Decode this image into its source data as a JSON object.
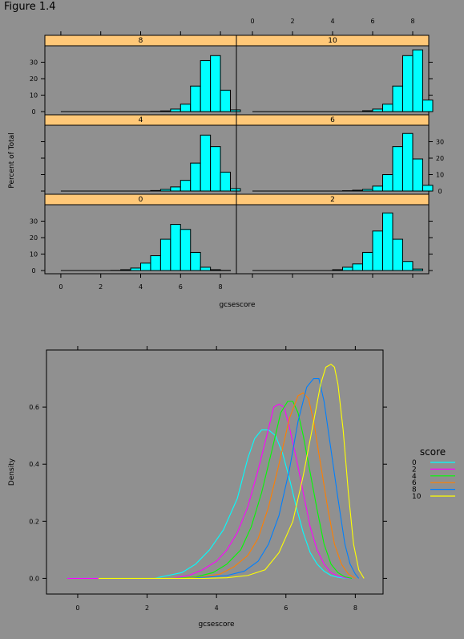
{
  "figure_title": "Figure 1.4",
  "chart_data": [
    {
      "type": "bar",
      "subtype": "trellis-histogram",
      "title": "",
      "xlabel": "gcsescore",
      "ylabel": "Percent of Total",
      "xlim": [
        -0.8,
        8.8
      ],
      "ylim": [
        0,
        40
      ],
      "x_ticks": [
        "0",
        "2",
        "4",
        "6",
        "8"
      ],
      "y_ticks": [
        "0",
        "10",
        "20",
        "30"
      ],
      "bar_color": "#00ffff",
      "strip_color": "#ffc878",
      "bin_edges": [
        0,
        0.5,
        1,
        1.5,
        2,
        2.5,
        3,
        3.5,
        4,
        4.5,
        5,
        5.5,
        6,
        6.5,
        7,
        7.5,
        8,
        8.5
      ],
      "panels": [
        {
          "label": "8",
          "values": [
            0,
            0,
            0,
            0,
            0,
            0,
            0,
            0,
            0,
            0.1,
            0.4,
            1.5,
            4.5,
            15.5,
            31,
            34,
            13,
            1
          ]
        },
        {
          "label": "10",
          "values": [
            0,
            0,
            0,
            0,
            0,
            0,
            0,
            0,
            0,
            0,
            0,
            0.5,
            1.5,
            4.5,
            15.5,
            34,
            37.5,
            7
          ]
        },
        {
          "label": "4",
          "values": [
            0,
            0,
            0,
            0,
            0,
            0,
            0,
            0,
            0,
            0.3,
            1,
            2.5,
            6.5,
            17,
            34,
            27,
            11.5,
            1.5
          ]
        },
        {
          "label": "6",
          "values": [
            0,
            0,
            0,
            0,
            0,
            0,
            0,
            0,
            0,
            0.2,
            0.5,
            1,
            3,
            10,
            27,
            35,
            19.5,
            3.5
          ]
        },
        {
          "label": "0",
          "values": [
            0,
            0,
            0,
            0,
            0,
            0.1,
            0.5,
            1.5,
            4.5,
            9,
            19,
            28,
            25,
            11,
            2,
            0.5,
            0.1,
            0
          ]
        },
        {
          "label": "2",
          "values": [
            0,
            0,
            0,
            0,
            0,
            0,
            0,
            0,
            0.5,
            2,
            4,
            11,
            24,
            35,
            19,
            5.5,
            0.9,
            0
          ]
        }
      ]
    },
    {
      "type": "line",
      "subtype": "density",
      "title": "",
      "xlabel": "gcsescore",
      "ylabel": "Density",
      "xlim": [
        -0.9,
        8.8
      ],
      "ylim": [
        -0.055,
        0.8
      ],
      "x_ticks": [
        "0",
        "2",
        "4",
        "6",
        "8"
      ],
      "y_ticks": [
        "0.0",
        "0.2",
        "0.4",
        "0.6"
      ],
      "legend_title": "score",
      "legend_placement": "right",
      "series": [
        {
          "name": "0",
          "color": "#00ffff",
          "x": [
            2.2,
            2.6,
            3.0,
            3.4,
            3.8,
            4.2,
            4.6,
            4.9,
            5.1,
            5.3,
            5.5,
            5.7,
            5.9,
            6.1,
            6.3,
            6.5,
            6.7,
            6.9,
            7.1,
            7.3,
            7.5,
            7.7,
            7.9
          ],
          "y": [
            0,
            0.01,
            0.02,
            0.05,
            0.1,
            0.17,
            0.28,
            0.42,
            0.49,
            0.52,
            0.52,
            0.5,
            0.44,
            0.35,
            0.25,
            0.16,
            0.09,
            0.05,
            0.025,
            0.01,
            0.004,
            0.001,
            0
          ]
        },
        {
          "name": "2",
          "color": "#ff00ff",
          "x": [
            2.7,
            3.2,
            3.6,
            4.0,
            4.3,
            4.6,
            4.9,
            5.2,
            5.45,
            5.65,
            5.8,
            5.95,
            6.1,
            6.3,
            6.5,
            6.7,
            6.9,
            7.1,
            7.3,
            7.5,
            7.7,
            7.9
          ],
          "y": [
            0,
            0.01,
            0.03,
            0.06,
            0.1,
            0.16,
            0.25,
            0.38,
            0.5,
            0.6,
            0.61,
            0.6,
            0.53,
            0.42,
            0.3,
            0.18,
            0.1,
            0.05,
            0.02,
            0.008,
            0.002,
            0
          ]
        },
        {
          "name": "4",
          "color": "#00ff00",
          "x": [
            2.8,
            3.4,
            3.9,
            4.3,
            4.7,
            5.0,
            5.3,
            5.6,
            5.85,
            6.05,
            6.2,
            6.35,
            6.5,
            6.7,
            6.9,
            7.1,
            7.3,
            7.5,
            7.7,
            7.9
          ],
          "y": [
            0,
            0.005,
            0.02,
            0.05,
            0.1,
            0.18,
            0.3,
            0.45,
            0.58,
            0.62,
            0.62,
            0.58,
            0.5,
            0.37,
            0.24,
            0.12,
            0.05,
            0.02,
            0.005,
            0
          ]
        },
        {
          "name": "6",
          "color": "#ff7f00",
          "x": [
            3.0,
            3.6,
            4.1,
            4.5,
            4.9,
            5.2,
            5.5,
            5.8,
            6.1,
            6.35,
            6.5,
            6.65,
            6.8,
            7.0,
            7.2,
            7.4,
            7.6,
            7.8,
            8.0
          ],
          "y": [
            0,
            0.005,
            0.015,
            0.04,
            0.08,
            0.14,
            0.25,
            0.4,
            0.56,
            0.64,
            0.65,
            0.63,
            0.55,
            0.4,
            0.25,
            0.12,
            0.05,
            0.015,
            0
          ]
        },
        {
          "name": "8",
          "color": "#0080ff",
          "x": [
            3.2,
            3.8,
            4.3,
            4.8,
            5.2,
            5.5,
            5.8,
            6.1,
            6.35,
            6.6,
            6.8,
            6.95,
            7.1,
            7.3,
            7.5,
            7.7,
            7.85,
            8.0,
            8.1
          ],
          "y": [
            0,
            0.005,
            0.01,
            0.025,
            0.06,
            0.12,
            0.22,
            0.38,
            0.55,
            0.67,
            0.7,
            0.7,
            0.62,
            0.45,
            0.28,
            0.12,
            0.05,
            0.015,
            0
          ]
        },
        {
          "name": "10",
          "color": "#ffff00",
          "x": [
            3.6,
            4.3,
            4.9,
            5.4,
            5.8,
            6.2,
            6.5,
            6.8,
            7.0,
            7.15,
            7.3,
            7.4,
            7.5,
            7.65,
            7.8,
            7.95,
            8.1,
            8.25
          ],
          "y": [
            0,
            0.002,
            0.01,
            0.03,
            0.09,
            0.2,
            0.36,
            0.55,
            0.68,
            0.74,
            0.75,
            0.74,
            0.68,
            0.52,
            0.3,
            0.12,
            0.03,
            0
          ]
        }
      ]
    }
  ]
}
